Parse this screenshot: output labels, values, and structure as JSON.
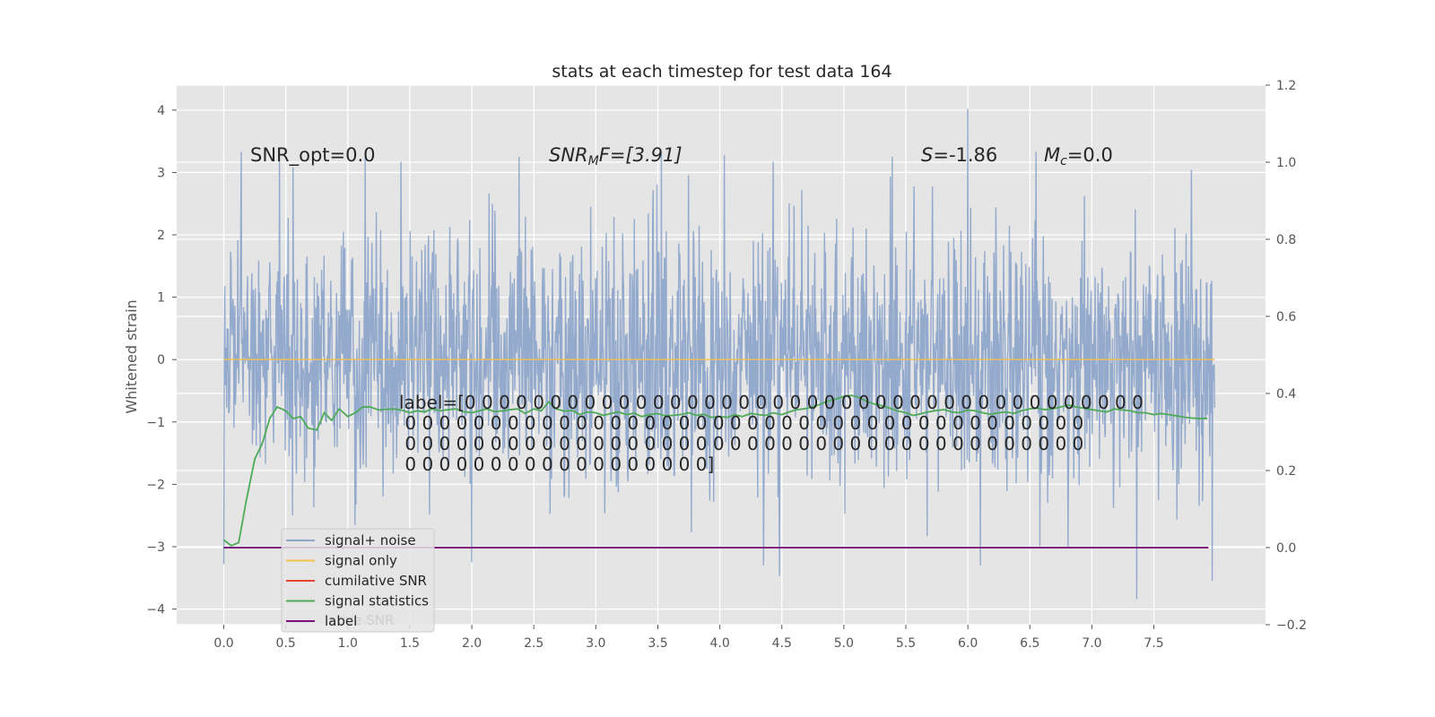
{
  "chart_data": {
    "type": "line",
    "title": "stats at each timestep for test data 164",
    "ylabel": "Whitened strain",
    "xlabel": "",
    "grid": true,
    "xlim": [
      -0.38,
      8.4
    ],
    "ylim": [
      -4.25,
      4.4
    ],
    "y2lim": [
      -0.2,
      1.2
    ],
    "xticks": [
      "0.0",
      "0.5",
      "1.0",
      "1.5",
      "2.0",
      "2.5",
      "3.0",
      "3.5",
      "4.0",
      "4.5",
      "5.0",
      "5.5",
      "6.0",
      "6.5",
      "7.0",
      "7.5"
    ],
    "yticks": [
      "4",
      "3",
      "2",
      "1",
      "0",
      "−1",
      "−2",
      "−3",
      "−4"
    ],
    "y2ticks": [
      "1.2",
      "1.0",
      "0.8",
      "0.6",
      "0.4",
      "0.2",
      "0.0",
      "−0.2"
    ],
    "annotations": {
      "snr_opt": "SNR_opt=0.0",
      "snr_mf_main": "SNR",
      "snr_mf_sub": "M",
      "snr_mf_rest": "F=[3.91]",
      "s_main": "S",
      "s_rest": "=-1.86",
      "mc_main": "M",
      "mc_sub": "c",
      "mc_rest": "=0.0"
    },
    "label_text": [
      "label=[0 0 0 0 0 0 0 0 0 0 0 0 0 0 0 0 0 0 0 0 0 0 0 0 0 0 0 0 0 0 0 0 0 0 0 0 0 0 0 0",
      " 0 0 0 0 0 0 0 0 0 0 0 0 0 0 0 0 0 0 0 0 0 0 0 0 0 0 0 0 0 0 0 0 0 0 0 0 0 0 0 0",
      " 0 0 0 0 0 0 0 0 0 0 0 0 0 0 0 0 0 0 0 0 0 0 0 0 0 0 0 0 0 0 0 0 0 0 0 0 0 0 0 0",
      " 0 0 0 0 0 0 0 0 0 0 0 0 0 0 0 0 0 0]"
    ],
    "legend": {
      "placement": "lower-left",
      "entries": [
        {
          "name": "signal+ noise",
          "color": "#8fa6cb"
        },
        {
          "name": "signal only",
          "color": "#f2c14e"
        },
        {
          "name": "cumilative SNR",
          "color": "#e8432c"
        },
        {
          "name": "signal statistics",
          "color": "#4daa57"
        },
        {
          "name": "label",
          "color": "#7b0f7b"
        }
      ],
      "ghost_text": "lative SNR"
    },
    "series": [
      {
        "name": "signal+ noise",
        "axis": "left",
        "color": "#8fa6cb",
        "description": "whitened noise, dense random trace",
        "sample_count": 2048,
        "x_range": [
          0.0,
          7.99
        ],
        "envelope_peaks": [
          {
            "x": 0.14,
            "y": 3.33
          },
          {
            "x": 0.56,
            "y": 3.08
          },
          {
            "x": 1.14,
            "y": 3.25
          },
          {
            "x": 1.43,
            "y": 3.17
          },
          {
            "x": 2.38,
            "y": 3.25
          },
          {
            "x": 4.43,
            "y": 3.17
          },
          {
            "x": 5.39,
            "y": 3.25
          },
          {
            "x": 6.0,
            "y": 4.02
          },
          {
            "x": 6.55,
            "y": 3.33
          },
          {
            "x": 4.48,
            "y": -3.47
          },
          {
            "x": 6.1,
            "y": -3.3
          },
          {
            "x": 7.36,
            "y": -3.84
          },
          {
            "x": 7.97,
            "y": -3.55
          },
          {
            "x": 2.0,
            "y": -3.25
          }
        ]
      },
      {
        "name": "signal only",
        "axis": "left",
        "color": "#f2c14e",
        "x": [
          0.0,
          7.99
        ],
        "y": [
          0.0,
          0.0
        ]
      },
      {
        "name": "signal statistics",
        "axis": "right",
        "color": "#4daa57",
        "x": [
          0.0,
          0.06,
          0.12,
          0.18,
          0.25,
          0.31,
          0.37,
          0.43,
          0.5,
          0.56,
          0.62,
          0.68,
          0.75,
          0.81,
          0.87,
          0.93,
          1.0,
          1.06,
          1.12,
          1.18,
          1.25,
          1.31,
          1.37,
          1.43,
          1.5,
          1.56,
          1.62,
          1.68,
          1.75,
          1.81,
          1.87,
          1.93,
          2.0,
          2.06,
          2.12,
          2.18,
          2.25,
          2.31,
          2.37,
          2.43,
          2.5,
          2.56,
          2.62,
          2.68,
          2.75,
          2.81,
          2.87,
          2.93,
          3.0,
          3.06,
          3.12,
          3.18,
          3.25,
          3.31,
          3.37,
          3.43,
          3.5,
          3.56,
          3.62,
          3.68,
          3.75,
          3.81,
          3.87,
          3.93,
          4.0,
          4.06,
          4.12,
          4.18,
          4.25,
          4.31,
          4.37,
          4.43,
          4.5,
          4.56,
          4.62,
          4.68,
          4.75,
          4.81,
          4.87,
          4.93,
          5.0,
          5.06,
          5.12,
          5.18,
          5.25,
          5.31,
          5.37,
          5.43,
          5.5,
          5.56,
          5.62,
          5.68,
          5.75,
          5.81,
          5.87,
          5.93,
          6.0,
          6.06,
          6.12,
          6.18,
          6.25,
          6.31,
          6.37,
          6.43,
          6.5,
          6.56,
          6.62,
          6.68,
          6.75,
          6.81,
          6.87,
          6.93,
          7.0,
          7.06,
          7.12,
          7.18,
          7.25,
          7.31,
          7.37,
          7.43,
          7.5,
          7.56,
          7.62,
          7.68,
          7.75,
          7.81,
          7.87,
          7.93
        ],
        "y": [
          0.02,
          0.005,
          0.013,
          0.12,
          0.23,
          0.27,
          0.335,
          0.365,
          0.355,
          0.335,
          0.34,
          0.31,
          0.305,
          0.35,
          0.33,
          0.36,
          0.34,
          0.35,
          0.365,
          0.365,
          0.357,
          0.359,
          0.36,
          0.357,
          0.35,
          0.355,
          0.352,
          0.36,
          0.355,
          0.358,
          0.36,
          0.353,
          0.35,
          0.355,
          0.36,
          0.353,
          0.355,
          0.358,
          0.36,
          0.348,
          0.36,
          0.355,
          0.378,
          0.36,
          0.354,
          0.356,
          0.345,
          0.352,
          0.35,
          0.343,
          0.348,
          0.352,
          0.345,
          0.349,
          0.34,
          0.345,
          0.348,
          0.342,
          0.343,
          0.345,
          0.35,
          0.343,
          0.346,
          0.338,
          0.34,
          0.338,
          0.345,
          0.34,
          0.348,
          0.345,
          0.343,
          0.35,
          0.345,
          0.352,
          0.358,
          0.36,
          0.365,
          0.372,
          0.38,
          0.385,
          0.392,
          0.395,
          0.39,
          0.38,
          0.372,
          0.368,
          0.362,
          0.355,
          0.35,
          0.343,
          0.347,
          0.352,
          0.356,
          0.358,
          0.352,
          0.35,
          0.357,
          0.355,
          0.35,
          0.346,
          0.35,
          0.352,
          0.348,
          0.355,
          0.36,
          0.362,
          0.358,
          0.36,
          0.365,
          0.37,
          0.365,
          0.362,
          0.358,
          0.355,
          0.352,
          0.36,
          0.357,
          0.355,
          0.35,
          0.35,
          0.345,
          0.348,
          0.345,
          0.342,
          0.338,
          0.336,
          0.335,
          0.335
        ]
      },
      {
        "name": "label",
        "axis": "right",
        "color": "#7b0f7b",
        "x": [
          0.0,
          7.94
        ],
        "y": [
          0.0,
          0.0
        ]
      }
    ]
  }
}
